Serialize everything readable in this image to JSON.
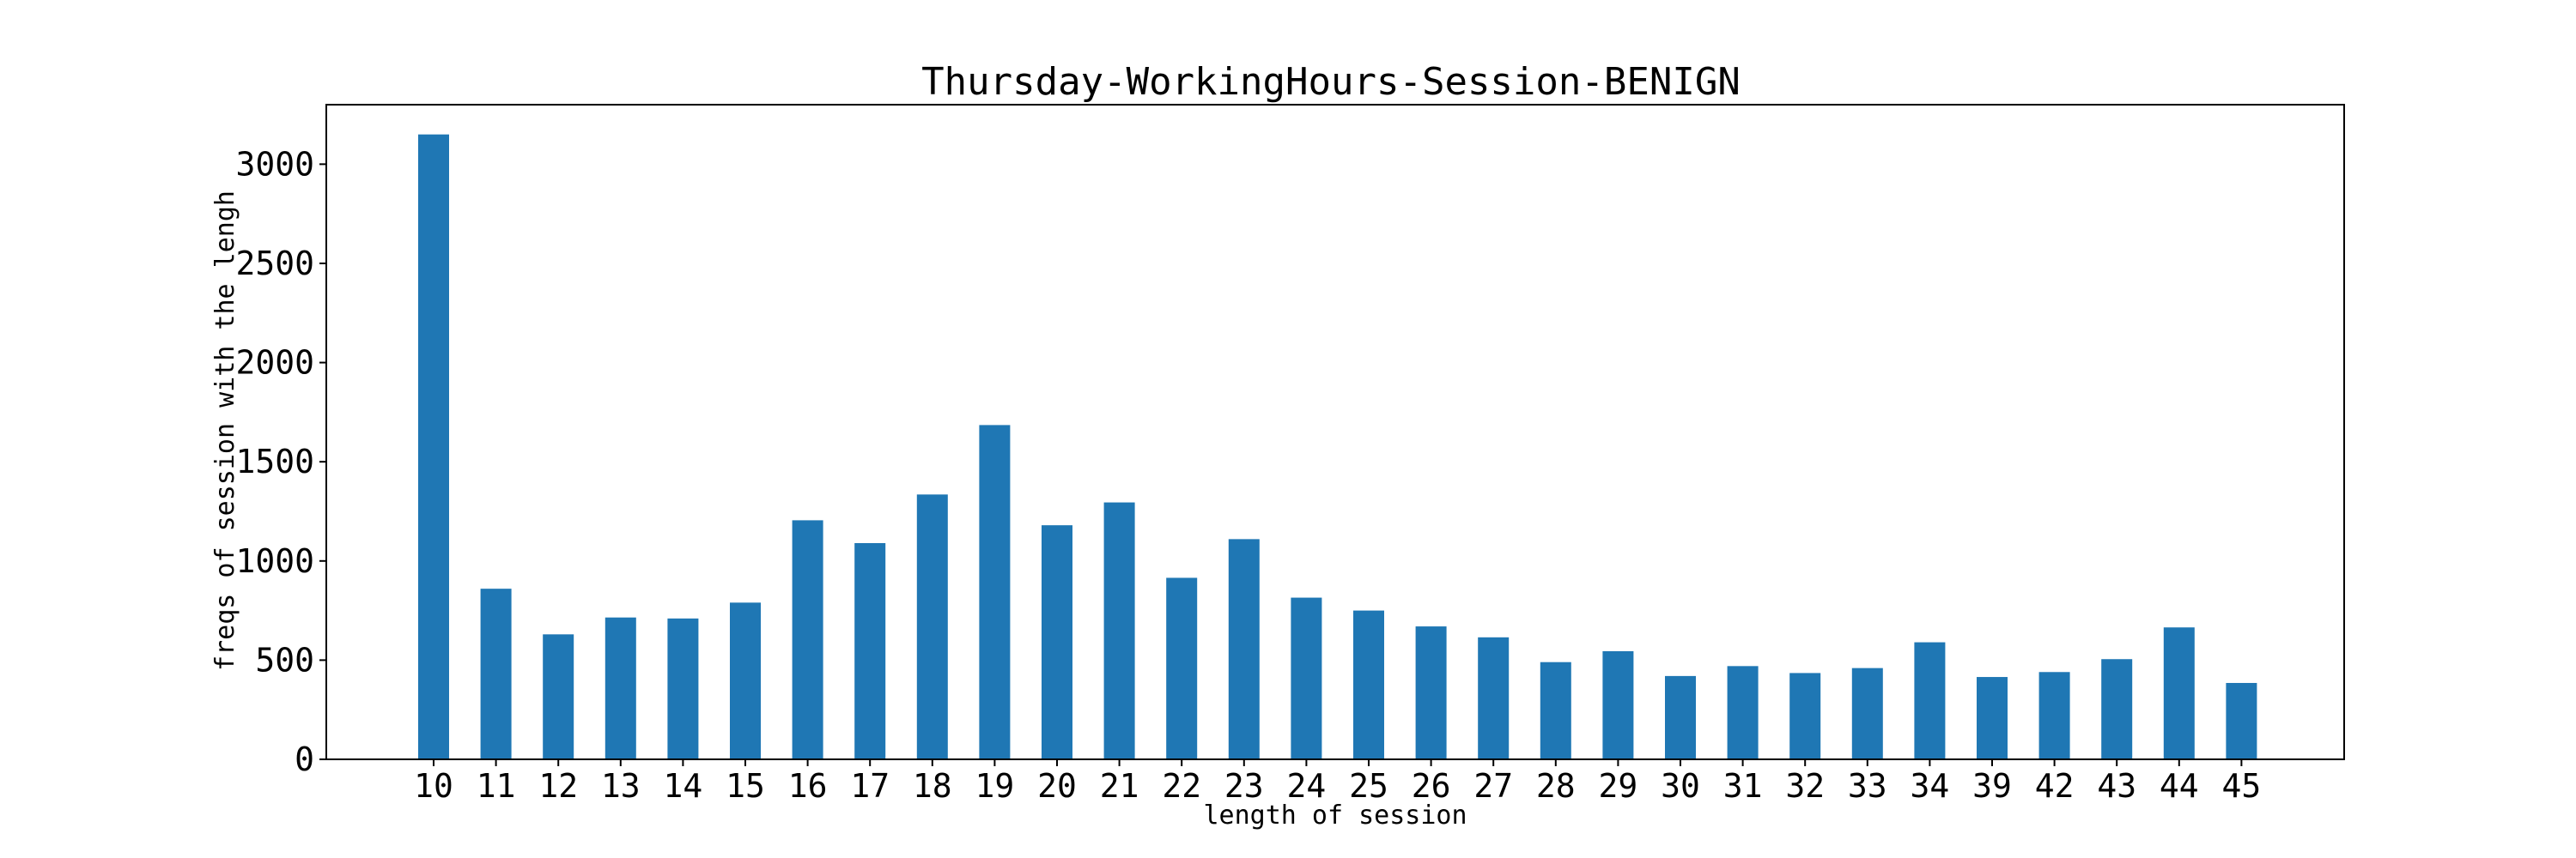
{
  "chart_data": {
    "type": "bar",
    "title": "Thursday-WorkingHours-Session-BENIGN",
    "xlabel": "length of session",
    "ylabel": "freqs of session with the lengh",
    "categories": [
      "10",
      "11",
      "12",
      "13",
      "14",
      "15",
      "16",
      "17",
      "18",
      "19",
      "20",
      "21",
      "22",
      "23",
      "24",
      "25",
      "26",
      "27",
      "28",
      "29",
      "30",
      "31",
      "32",
      "33",
      "34",
      "39",
      "42",
      "43",
      "44",
      "45"
    ],
    "values": [
      3150,
      860,
      630,
      715,
      710,
      790,
      1205,
      1090,
      1335,
      1685,
      1180,
      1295,
      915,
      1110,
      815,
      750,
      670,
      615,
      490,
      545,
      420,
      470,
      435,
      460,
      590,
      415,
      440,
      505,
      665,
      385
    ],
    "ylim": [
      0,
      3300
    ],
    "yticks": [
      0,
      500,
      1000,
      1500,
      2000,
      2500,
      3000
    ],
    "grid": false,
    "legend": "none",
    "bar_color": "#1f77b4"
  }
}
